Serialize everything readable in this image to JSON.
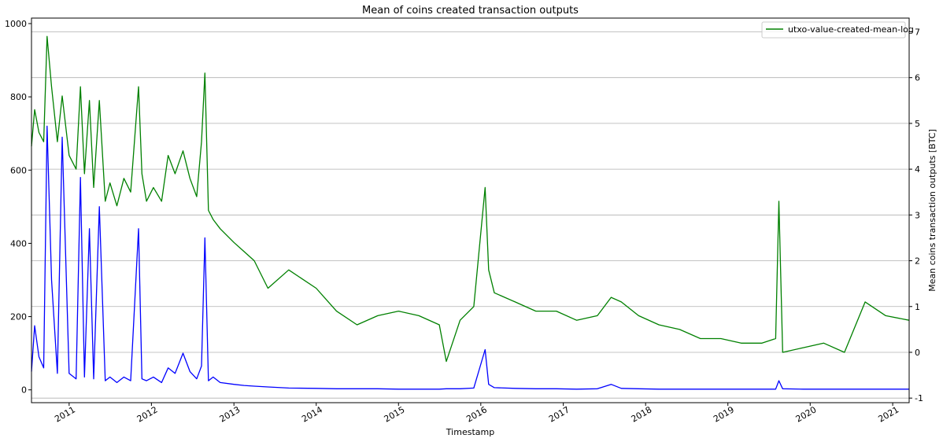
{
  "chart_data": {
    "type": "line",
    "title": "Mean of coins created transaction outputs",
    "xlabel": "Timestamp",
    "ylabel_left": "",
    "ylabel_right": "Mean coins transaction outputs [BTC]",
    "x_range": [
      "2010-07-18",
      "2021-03-15"
    ],
    "x_tick_labels": [
      "2011",
      "2012",
      "2013",
      "2014",
      "2015",
      "2016",
      "2017",
      "2018",
      "2019",
      "2020",
      "2021"
    ],
    "ylim_left": [
      -35,
      1015
    ],
    "yticks_left": [
      0,
      200,
      400,
      600,
      800,
      1000
    ],
    "ylim_right": [
      -1.1,
      7.3
    ],
    "yticks_right": [
      -1,
      0,
      1,
      2,
      3,
      4,
      5,
      6,
      7
    ],
    "grid": "horizontal lines at right-axis ticks",
    "legend": {
      "placement": "top-right",
      "entries": [
        "utxo-value-created-mean-log"
      ]
    },
    "series": [
      {
        "axis": "left",
        "color": "#0000ff",
        "x": [
          "2010-07-18",
          "2010-08-01",
          "2010-08-20",
          "2010-09-10",
          "2010-09-25",
          "2010-10-15",
          "2010-11-10",
          "2010-12-01",
          "2011-01-01",
          "2011-02-01",
          "2011-02-20",
          "2011-03-10",
          "2011-04-01",
          "2011-04-20",
          "2011-05-15",
          "2011-06-10",
          "2011-07-01",
          "2011-08-01",
          "2011-09-01",
          "2011-10-01",
          "2011-11-05",
          "2011-11-20",
          "2011-12-10",
          "2012-01-10",
          "2012-02-15",
          "2012-03-15",
          "2012-04-15",
          "2012-05-20",
          "2012-06-20",
          "2012-07-20",
          "2012-08-10",
          "2012-08-25",
          "2012-09-10",
          "2012-10-01",
          "2012-11-01",
          "2013-01-01",
          "2013-02-15",
          "2013-04-01",
          "2013-06-01",
          "2013-09-01",
          "2014-01-01",
          "2014-04-01",
          "2014-07-01",
          "2014-10-01",
          "2015-01-01",
          "2015-04-01",
          "2015-07-01",
          "2015-08-01",
          "2015-10-01",
          "2015-12-01",
          "2016-01-20",
          "2016-02-05",
          "2016-03-01",
          "2016-06-01",
          "2016-09-01",
          "2016-12-01",
          "2017-03-01",
          "2017-06-01",
          "2017-08-01",
          "2017-09-15",
          "2017-12-01",
          "2018-03-01",
          "2018-06-01",
          "2018-09-01",
          "2018-12-01",
          "2019-03-01",
          "2019-06-01",
          "2019-08-01",
          "2019-08-15",
          "2019-09-01",
          "2019-12-01",
          "2020-03-01",
          "2020-06-01",
          "2020-09-01",
          "2020-12-01",
          "2021-03-15"
        ],
        "values": [
          50,
          175,
          90,
          60,
          720,
          300,
          45,
          690,
          45,
          30,
          580,
          35,
          440,
          30,
          500,
          25,
          35,
          20,
          35,
          25,
          440,
          30,
          25,
          35,
          20,
          60,
          45,
          100,
          50,
          30,
          65,
          415,
          25,
          35,
          20,
          15,
          12,
          10,
          8,
          5,
          4,
          3,
          3,
          3,
          2,
          2,
          2,
          3,
          3,
          5,
          110,
          15,
          6,
          4,
          3,
          3,
          2,
          3,
          15,
          4,
          3,
          2,
          2,
          2,
          2,
          2,
          2,
          2,
          25,
          3,
          2,
          2,
          2,
          2,
          2,
          2
        ]
      },
      {
        "axis": "right",
        "name": "utxo-value-created-mean-log",
        "color": "#008000",
        "x": [
          "2010-07-18",
          "2010-08-01",
          "2010-08-20",
          "2010-09-10",
          "2010-09-25",
          "2010-10-15",
          "2010-11-10",
          "2010-12-01",
          "2011-01-01",
          "2011-02-01",
          "2011-02-20",
          "2011-03-10",
          "2011-04-01",
          "2011-04-20",
          "2011-05-15",
          "2011-06-10",
          "2011-07-01",
          "2011-08-01",
          "2011-09-01",
          "2011-10-01",
          "2011-11-05",
          "2011-11-20",
          "2011-12-10",
          "2012-01-10",
          "2012-02-15",
          "2012-03-15",
          "2012-04-15",
          "2012-05-20",
          "2012-06-20",
          "2012-07-20",
          "2012-08-10",
          "2012-08-25",
          "2012-09-10",
          "2012-10-01",
          "2012-11-01",
          "2013-01-01",
          "2013-02-15",
          "2013-04-01",
          "2013-06-01",
          "2013-09-01",
          "2014-01-01",
          "2014-04-01",
          "2014-07-01",
          "2014-10-01",
          "2015-01-01",
          "2015-04-01",
          "2015-07-01",
          "2015-08-01",
          "2015-10-01",
          "2015-12-01",
          "2016-01-20",
          "2016-02-05",
          "2016-03-01",
          "2016-06-01",
          "2016-09-01",
          "2016-12-01",
          "2017-03-01",
          "2017-06-01",
          "2017-08-01",
          "2017-09-15",
          "2017-12-01",
          "2018-03-01",
          "2018-06-01",
          "2018-09-01",
          "2018-12-01",
          "2019-03-01",
          "2019-06-01",
          "2019-08-01",
          "2019-08-15",
          "2019-09-01",
          "2019-12-01",
          "2020-03-01",
          "2020-06-01",
          "2020-09-01",
          "2020-12-01",
          "2021-03-15"
        ],
        "values": [
          4.5,
          5.3,
          4.8,
          4.6,
          6.9,
          5.8,
          4.6,
          5.6,
          4.3,
          4.0,
          5.8,
          3.9,
          5.5,
          3.6,
          5.5,
          3.3,
          3.7,
          3.2,
          3.8,
          3.5,
          5.8,
          3.9,
          3.3,
          3.6,
          3.3,
          4.3,
          3.9,
          4.4,
          3.8,
          3.4,
          4.6,
          6.1,
          3.1,
          2.9,
          2.7,
          2.4,
          2.2,
          2.0,
          1.4,
          1.8,
          1.4,
          0.9,
          0.6,
          0.8,
          0.9,
          0.8,
          0.6,
          -0.2,
          0.7,
          1.0,
          3.6,
          1.8,
          1.3,
          1.1,
          0.9,
          0.9,
          0.7,
          0.8,
          1.2,
          1.1,
          0.8,
          0.6,
          0.5,
          0.3,
          0.3,
          0.2,
          0.2,
          0.3,
          3.3,
          0.0,
          0.1,
          0.2,
          0.0,
          1.1,
          0.8,
          0.7
        ]
      }
    ]
  }
}
